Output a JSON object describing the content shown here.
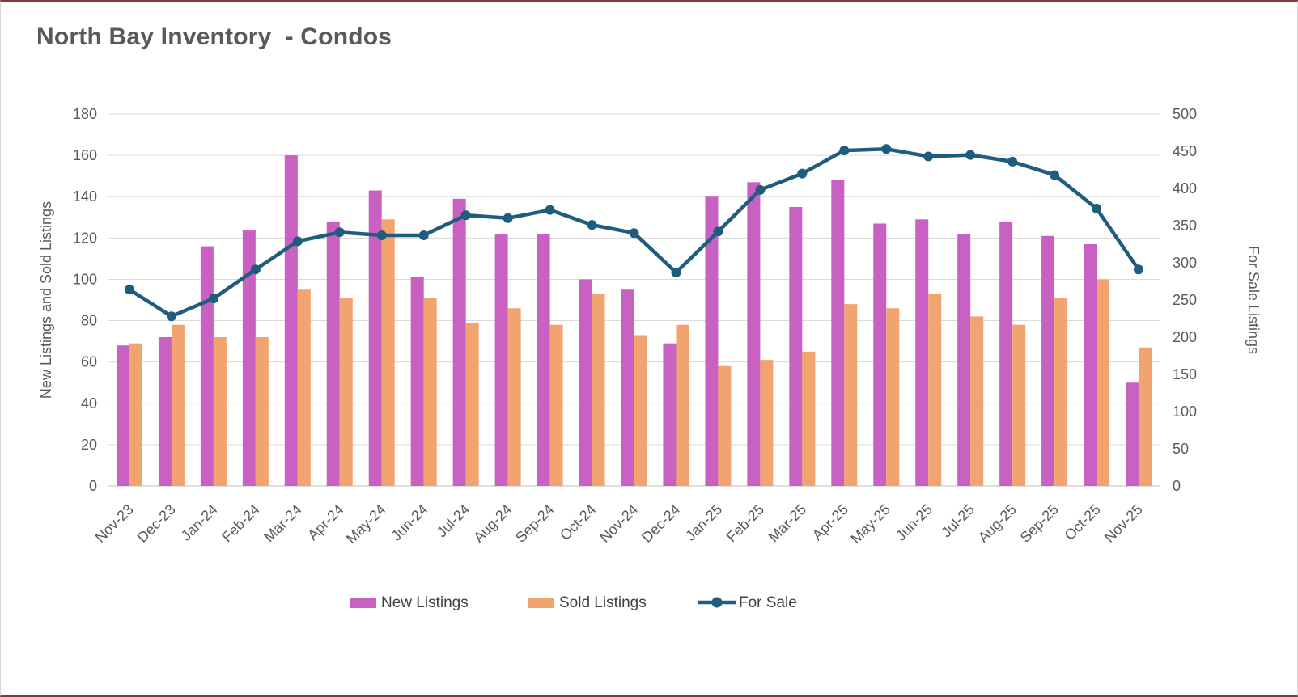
{
  "page": {
    "title": "North Bay Inventory  - Condos"
  },
  "chart_data": {
    "type": "combo",
    "title": "North Bay Inventory  - Condos",
    "categories": [
      "Nov-23",
      "Dec-23",
      "Jan-24",
      "Feb-24",
      "Mar-24",
      "Apr-24",
      "May-24",
      "Jun-24",
      "Jul-24",
      "Aug-24",
      "Sep-24",
      "Oct-24",
      "Nov-24",
      "Dec-24",
      "Jan-25",
      "Feb-25",
      "Mar-25",
      "Apr-25",
      "May-25",
      "Jun-25",
      "Jul-25",
      "Aug-25",
      "Sep-25",
      "Oct-25",
      "Nov-25"
    ],
    "series": [
      {
        "name": "New Listings",
        "type": "bar",
        "axis": "left",
        "color": "#C961C3",
        "values": [
          68,
          72,
          116,
          124,
          160,
          128,
          143,
          101,
          139,
          122,
          122,
          100,
          95,
          69,
          140,
          147,
          135,
          148,
          127,
          129,
          122,
          128,
          121,
          117,
          50
        ]
      },
      {
        "name": "Sold Listings",
        "type": "bar",
        "axis": "left",
        "color": "#F2A470",
        "values": [
          69,
          78,
          72,
          72,
          95,
          91,
          129,
          91,
          79,
          86,
          78,
          93,
          73,
          78,
          58,
          61,
          65,
          88,
          86,
          93,
          82,
          78,
          91,
          100,
          67
        ]
      },
      {
        "name": "For Sale",
        "type": "line",
        "axis": "right",
        "color": "#1F5C7D",
        "values": [
          264,
          228,
          252,
          291,
          329,
          341,
          337,
          337,
          364,
          360,
          371,
          351,
          340,
          287,
          342,
          398,
          420,
          451,
          453,
          443,
          445,
          436,
          418,
          373,
          291
        ]
      }
    ],
    "left_axis": {
      "label": "New Listings and Sold Listings",
      "min": 0,
      "max": 180,
      "step": 20
    },
    "right_axis": {
      "label": "For Sale Listings",
      "min": 0,
      "max": 500,
      "step": 50
    },
    "legend_position": "bottom",
    "grid": true,
    "grid_color": "#DADADA",
    "axis_text_color": "#595959"
  }
}
